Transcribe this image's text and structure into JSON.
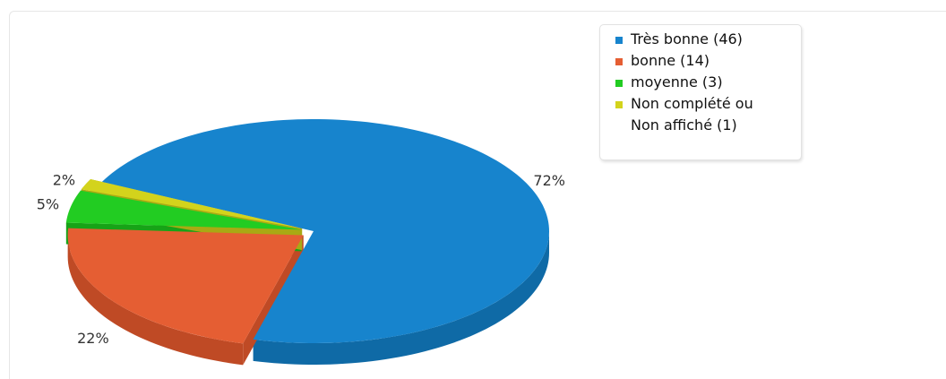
{
  "chart_data": {
    "type": "pie",
    "title": "",
    "slices": [
      {
        "label": "Très bonne",
        "count": 46,
        "percent": 72,
        "percent_label": "72%",
        "legend_label": "Très bonne (46)",
        "color": "#1784cd",
        "side_color": "#0f6aa6",
        "exploded": false
      },
      {
        "label": "bonne",
        "count": 14,
        "percent": 22,
        "percent_label": "22%",
        "legend_label": "bonne (14)",
        "color": "#e55e33",
        "side_color": "#bf4a25",
        "exploded": true
      },
      {
        "label": "moyenne",
        "count": 3,
        "percent": 5,
        "percent_label": "5%",
        "legend_label": "moyenne (3)",
        "color": "#22cc22",
        "side_color": "#17a317",
        "exploded": true
      },
      {
        "label": "Non complété ou Non affiché",
        "count": 1,
        "percent": 2,
        "percent_label": "2%",
        "legend_label": "Non complété ou Non affiché (1)",
        "color": "#d3d31c",
        "side_color": "#a9a914",
        "exploded": true
      }
    ],
    "legend_position": "top-right",
    "style": "3d"
  },
  "legend": {
    "items": [
      {
        "text": "Très bonne (46)",
        "color": "#1784cd"
      },
      {
        "text": "bonne (14)",
        "color": "#e55e33"
      },
      {
        "text": "moyenne (3)",
        "color": "#22cc22"
      },
      {
        "text_line1": "Non complété ou",
        "text_line2": "Non affiché (1)",
        "color": "#d3d31c"
      }
    ]
  }
}
